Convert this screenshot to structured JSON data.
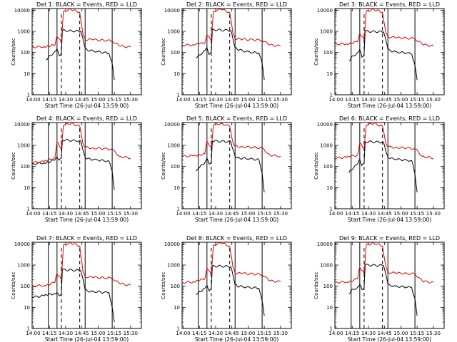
{
  "colors": {
    "events": "#000000",
    "lld": "#e00000",
    "axes": "#000000",
    "background": "#ffffff"
  },
  "chart_data": [
    {
      "type": "line",
      "title": "Det 1: BLACK = Events, RED = LLD",
      "xlabel": "Start Time (26-Jul-04 13:59:00)",
      "ylabel": "Counts/sec",
      "yscale": "log",
      "ylim": [
        1,
        12000
      ],
      "grid": false,
      "x_ticks": [
        "14:00",
        "14:15",
        "14:30",
        "14:45",
        "15:00",
        "15:15",
        "15:30"
      ],
      "y_ticks": [
        "1",
        "10",
        "100",
        "1000",
        "10000"
      ],
      "solid_markers": [
        "14:14",
        "14:22",
        "14:48",
        "15:13"
      ],
      "dashed_markers": [
        "14:26",
        "14:43"
      ],
      "series": [
        {
          "name": "Events",
          "x": [
            "14:12",
            "14:14",
            "14:20",
            "14:22",
            "14:24",
            "14:26",
            "14:27",
            "14:44",
            "14:48",
            "14:50",
            "14:55",
            "15:00",
            "15:05",
            "15:10",
            "15:13",
            "15:15"
          ],
          "values": [
            45,
            60,
            110,
            150,
            70,
            90,
            1100,
            1000,
            160,
            130,
            120,
            110,
            100,
            90,
            30,
            5
          ]
        },
        {
          "name": "LLD",
          "x": [
            "13:59",
            "14:10",
            "14:14",
            "14:20",
            "14:22",
            "14:26",
            "14:28",
            "14:35",
            "14:43",
            "14:46",
            "14:48",
            "14:55",
            "15:05",
            "15:13",
            "15:20",
            "15:30"
          ],
          "values": [
            180,
            190,
            200,
            220,
            600,
            300,
            9000,
            11000,
            8000,
            700,
            420,
            400,
            380,
            350,
            200,
            180
          ]
        }
      ]
    },
    {
      "type": "line",
      "title": "Det 2: BLACK = Events, RED = LLD",
      "xlabel": "Start Time (26-Jul-04 13:59:00)",
      "ylabel": "Counts/sec",
      "yscale": "log",
      "ylim": [
        1,
        12000
      ],
      "grid": false,
      "x_ticks": [
        "14:00",
        "14:15",
        "14:30",
        "14:45",
        "15:00",
        "15:15",
        "15:30"
      ],
      "y_ticks": [
        "1",
        "10",
        "100",
        "1000",
        "10000"
      ],
      "solid_markers": [
        "14:14",
        "14:22",
        "14:48",
        "15:13"
      ],
      "dashed_markers": [
        "14:26",
        "14:43"
      ],
      "series": [
        {
          "name": "Events",
          "x": [
            "14:12",
            "14:14",
            "14:20",
            "14:22",
            "14:24",
            "14:26",
            "14:27",
            "14:44",
            "14:48",
            "14:50",
            "14:55",
            "15:00",
            "15:05",
            "15:10",
            "15:13",
            "15:15"
          ],
          "values": [
            55,
            70,
            120,
            170,
            80,
            100,
            1200,
            1100,
            170,
            140,
            120,
            110,
            100,
            95,
            30,
            5
          ]
        },
        {
          "name": "LLD",
          "x": [
            "13:59",
            "14:10",
            "14:14",
            "14:20",
            "14:22",
            "14:26",
            "14:28",
            "14:35",
            "14:43",
            "14:46",
            "14:48",
            "14:55",
            "15:05",
            "15:13",
            "15:20",
            "15:30"
          ],
          "values": [
            220,
            230,
            250,
            280,
            700,
            350,
            9000,
            11000,
            8000,
            800,
            450,
            420,
            400,
            380,
            230,
            200
          ]
        }
      ]
    },
    {
      "type": "line",
      "title": "Det 3: BLACK = Events, RED = LLD",
      "xlabel": "Start Time (26-Jul-04 13:59:00)",
      "ylabel": "Counts/sec",
      "yscale": "log",
      "ylim": [
        1,
        12000
      ],
      "grid": false,
      "x_ticks": [
        "14:00",
        "14:15",
        "14:30",
        "14:45",
        "15:00",
        "15:15",
        "15:30"
      ],
      "y_ticks": [
        "1",
        "10",
        "100",
        "1000",
        "10000"
      ],
      "solid_markers": [
        "14:14",
        "14:22",
        "14:48",
        "15:13"
      ],
      "dashed_markers": [
        "14:26",
        "14:43"
      ],
      "series": [
        {
          "name": "Events",
          "x": [
            "14:12",
            "14:14",
            "14:20",
            "14:22",
            "14:24",
            "14:26",
            "14:27",
            "14:44",
            "14:48",
            "14:50",
            "14:55",
            "15:00",
            "15:05",
            "15:10",
            "15:13",
            "15:15"
          ],
          "values": [
            40,
            55,
            100,
            140,
            60,
            80,
            1000,
            950,
            150,
            120,
            110,
            100,
            95,
            85,
            25,
            5
          ]
        },
        {
          "name": "LLD",
          "x": [
            "13:59",
            "14:10",
            "14:14",
            "14:20",
            "14:22",
            "14:26",
            "14:28",
            "14:35",
            "14:43",
            "14:46",
            "14:48",
            "14:55",
            "15:05",
            "15:13",
            "15:20",
            "15:30"
          ],
          "values": [
            250,
            260,
            280,
            320,
            800,
            400,
            9000,
            11000,
            8000,
            900,
            550,
            500,
            480,
            450,
            240,
            200
          ]
        }
      ]
    },
    {
      "type": "line",
      "title": "Det 4: BLACK = Events, RED = LLD",
      "xlabel": "Start Time (26-Jul-04 13:59:00)",
      "ylabel": "Counts/sec",
      "yscale": "log",
      "ylim": [
        1,
        12000
      ],
      "grid": false,
      "x_ticks": [
        "14:00",
        "14:15",
        "14:30",
        "14:45",
        "15:00",
        "15:15",
        "15:30"
      ],
      "y_ticks": [
        "1",
        "10",
        "100",
        "1000",
        "10000"
      ],
      "solid_markers": [
        "14:14",
        "14:22",
        "14:48",
        "15:13"
      ],
      "dashed_markers": [
        "14:26",
        "14:43"
      ],
      "series": [
        {
          "name": "Events",
          "x": [
            "13:59",
            "14:10",
            "14:14",
            "14:20",
            "14:22",
            "14:24",
            "14:26",
            "14:27",
            "14:44",
            "14:48",
            "14:50",
            "14:55",
            "15:00",
            "15:05",
            "15:10",
            "15:13",
            "15:15"
          ],
          "values": [
            130,
            150,
            160,
            200,
            280,
            200,
            250,
            1800,
            1600,
            280,
            230,
            210,
            200,
            190,
            180,
            60,
            8
          ]
        },
        {
          "name": "LLD",
          "x": [
            "13:59",
            "14:10",
            "14:14",
            "14:20",
            "14:22",
            "14:26",
            "14:28",
            "14:35",
            "14:43",
            "14:46",
            "14:48",
            "14:55",
            "15:05",
            "15:13",
            "15:20",
            "15:30"
          ],
          "values": [
            150,
            170,
            200,
            260,
            1500,
            700,
            9000,
            11000,
            8000,
            1200,
            800,
            750,
            700,
            650,
            300,
            250
          ]
        }
      ]
    },
    {
      "type": "line",
      "title": "Det 5: BLACK = Events, RED = LLD",
      "xlabel": "Start Time (26-Jul-04 13:59:00)",
      "ylabel": "Counts/sec",
      "yscale": "log",
      "ylim": [
        1,
        12000
      ],
      "grid": false,
      "x_ticks": [
        "14:00",
        "14:15",
        "14:30",
        "14:45",
        "15:00",
        "15:15",
        "15:30"
      ],
      "y_ticks": [
        "1",
        "10",
        "100",
        "1000",
        "10000"
      ],
      "solid_markers": [
        "14:14",
        "14:22",
        "14:48",
        "15:13"
      ],
      "dashed_markers": [
        "14:26",
        "14:43"
      ],
      "series": [
        {
          "name": "Events",
          "x": [
            "14:12",
            "14:14",
            "14:20",
            "14:22",
            "14:24",
            "14:26",
            "14:27",
            "14:44",
            "14:48",
            "14:50",
            "14:55",
            "15:00",
            "15:05",
            "15:10",
            "15:13",
            "15:15"
          ],
          "values": [
            60,
            80,
            150,
            250,
            130,
            160,
            1600,
            1500,
            300,
            260,
            240,
            230,
            220,
            210,
            50,
            6
          ]
        },
        {
          "name": "LLD",
          "x": [
            "13:59",
            "14:10",
            "14:14",
            "14:20",
            "14:22",
            "14:26",
            "14:28",
            "14:35",
            "14:43",
            "14:46",
            "14:48",
            "14:55",
            "15:05",
            "15:13",
            "15:20",
            "15:30"
          ],
          "values": [
            300,
            320,
            350,
            400,
            1600,
            800,
            9000,
            11000,
            8000,
            1400,
            900,
            850,
            800,
            750,
            350,
            300
          ]
        }
      ]
    },
    {
      "type": "line",
      "title": "Det 6: BLACK = Events, RED = LLD",
      "xlabel": "Start Time (26-Jul-04 13:59:00)",
      "ylabel": "Counts/sec",
      "yscale": "log",
      "ylim": [
        1,
        12000
      ],
      "grid": false,
      "x_ticks": [
        "14:00",
        "14:15",
        "14:30",
        "14:45",
        "15:00",
        "15:15",
        "15:30"
      ],
      "y_ticks": [
        "1",
        "10",
        "100",
        "1000",
        "10000"
      ],
      "solid_markers": [
        "14:14",
        "14:22",
        "14:48",
        "15:13"
      ],
      "dashed_markers": [
        "14:26",
        "14:43"
      ],
      "series": [
        {
          "name": "Events",
          "x": [
            "14:12",
            "14:14",
            "14:20",
            "14:22",
            "14:24",
            "14:26",
            "14:27",
            "14:44",
            "14:48",
            "14:50",
            "14:55",
            "15:00",
            "15:05",
            "15:10",
            "15:13",
            "15:15"
          ],
          "values": [
            50,
            70,
            130,
            220,
            110,
            140,
            1500,
            1400,
            280,
            240,
            220,
            210,
            200,
            190,
            45,
            6
          ]
        },
        {
          "name": "LLD",
          "x": [
            "13:59",
            "14:10",
            "14:14",
            "14:20",
            "14:22",
            "14:26",
            "14:28",
            "14:35",
            "14:43",
            "14:46",
            "14:48",
            "14:55",
            "15:05",
            "15:13",
            "15:20",
            "15:30"
          ],
          "values": [
            250,
            270,
            300,
            350,
            1300,
            700,
            9000,
            11000,
            8000,
            1300,
            850,
            800,
            750,
            700,
            300,
            250
          ]
        }
      ]
    },
    {
      "type": "line",
      "title": "Det 7: BLACK = Events, RED = LLD",
      "xlabel": "Start Time (26-Jul-04 13:59:00)",
      "ylabel": "Counts/sec",
      "yscale": "log",
      "ylim": [
        1,
        12000
      ],
      "grid": false,
      "x_ticks": [
        "14:00",
        "14:15",
        "14:30",
        "14:45",
        "15:00",
        "15:15",
        "15:30"
      ],
      "y_ticks": [
        "1",
        "10",
        "100",
        "1000",
        "10000"
      ],
      "solid_markers": [
        "14:14",
        "14:22",
        "14:48",
        "15:13"
      ],
      "dashed_markers": [
        "14:26",
        "14:43"
      ],
      "series": [
        {
          "name": "Events",
          "x": [
            "13:59",
            "14:10",
            "14:14",
            "14:20",
            "14:22",
            "14:24",
            "14:26",
            "14:27",
            "14:44",
            "14:48",
            "14:50",
            "14:55",
            "15:00",
            "15:05",
            "15:10",
            "15:13",
            "15:15"
          ],
          "values": [
            30,
            35,
            40,
            45,
            50,
            35,
            45,
            600,
            550,
            70,
            60,
            55,
            55,
            50,
            50,
            10,
            2
          ]
        },
        {
          "name": "LLD",
          "x": [
            "13:59",
            "14:10",
            "14:14",
            "14:20",
            "14:22",
            "14:26",
            "14:28",
            "14:35",
            "14:43",
            "14:46",
            "14:48",
            "14:55",
            "15:05",
            "15:13",
            "15:20",
            "15:30"
          ],
          "values": [
            100,
            110,
            120,
            150,
            400,
            200,
            9000,
            11000,
            8000,
            500,
            280,
            260,
            250,
            240,
            130,
            110
          ]
        }
      ]
    },
    {
      "type": "line",
      "title": "Det 8: BLACK = Events, RED = LLD",
      "xlabel": "Start Time (26-Jul-04 13:59:00)",
      "ylabel": "Counts/sec",
      "yscale": "log",
      "ylim": [
        1,
        12000
      ],
      "grid": false,
      "x_ticks": [
        "14:00",
        "14:15",
        "14:30",
        "14:45",
        "15:00",
        "15:15",
        "15:30"
      ],
      "y_ticks": [
        "1",
        "10",
        "100",
        "1000",
        "10000"
      ],
      "solid_markers": [
        "14:14",
        "14:22",
        "14:48",
        "15:13"
      ],
      "dashed_markers": [
        "14:26",
        "14:43"
      ],
      "series": [
        {
          "name": "Events",
          "x": [
            "14:12",
            "14:14",
            "14:20",
            "14:22",
            "14:24",
            "14:26",
            "14:27",
            "14:44",
            "14:48",
            "14:50",
            "14:55",
            "15:00",
            "15:05",
            "15:10",
            "15:13",
            "15:15"
          ],
          "values": [
            40,
            50,
            80,
            110,
            60,
            75,
            900,
            850,
            120,
            100,
            95,
            90,
            85,
            80,
            20,
            4
          ]
        },
        {
          "name": "LLD",
          "x": [
            "13:59",
            "14:10",
            "14:14",
            "14:20",
            "14:22",
            "14:26",
            "14:28",
            "14:35",
            "14:43",
            "14:46",
            "14:48",
            "14:55",
            "15:05",
            "15:13",
            "15:20",
            "15:30"
          ],
          "values": [
            150,
            160,
            180,
            220,
            700,
            350,
            9000,
            11000,
            8000,
            800,
            420,
            400,
            380,
            350,
            180,
            160
          ]
        }
      ]
    },
    {
      "type": "line",
      "title": "Det 9: BLACK = Events, RED = LLD",
      "xlabel": "Start Time (26-Jul-04 13:59:00)",
      "ylabel": "Counts/sec",
      "yscale": "log",
      "ylim": [
        1,
        12000
      ],
      "grid": false,
      "x_ticks": [
        "14:00",
        "14:15",
        "14:30",
        "14:45",
        "15:00",
        "15:15",
        "15:30"
      ],
      "y_ticks": [
        "1",
        "10",
        "100",
        "1000",
        "10000"
      ],
      "solid_markers": [
        "14:14",
        "14:22",
        "14:48",
        "15:13"
      ],
      "dashed_markers": [
        "14:26",
        "14:43"
      ],
      "series": [
        {
          "name": "Events",
          "x": [
            "14:12",
            "14:14",
            "14:20",
            "14:22",
            "14:24",
            "14:26",
            "14:27",
            "14:44",
            "14:48",
            "14:50",
            "14:55",
            "15:00",
            "15:05",
            "15:10",
            "15:13",
            "15:15"
          ],
          "values": [
            45,
            60,
            90,
            120,
            70,
            85,
            1000,
            950,
            130,
            110,
            100,
            95,
            90,
            85,
            25,
            4
          ]
        },
        {
          "name": "LLD",
          "x": [
            "13:59",
            "14:10",
            "14:14",
            "14:20",
            "14:22",
            "14:26",
            "14:28",
            "14:35",
            "14:43",
            "14:46",
            "14:48",
            "14:55",
            "15:05",
            "15:13",
            "15:20",
            "15:30"
          ],
          "values": [
            150,
            160,
            180,
            220,
            800,
            400,
            9000,
            11000,
            8000,
            900,
            450,
            420,
            400,
            380,
            170,
            150
          ]
        }
      ]
    }
  ]
}
